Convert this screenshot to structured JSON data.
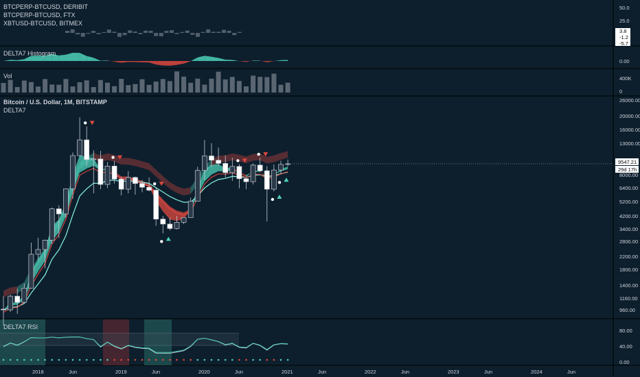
{
  "panels": {
    "spread": {
      "legend": [
        "BTCPERP-BTCUSD, DERIBIT",
        "BTCPERP-BTCUSD, FTX",
        "XBTUSD-BTCUSD, BITMEX"
      ],
      "ticks": [
        "50.0",
        "25.0",
        "3.8",
        "-1.2",
        "-5.7"
      ]
    },
    "hist": {
      "title": "DELTA7 Histogram",
      "ticks": [
        "0.00"
      ]
    },
    "vol": {
      "title": "Vol",
      "ticks": [
        "400K",
        "0"
      ]
    },
    "main": {
      "title": "Bitcoin / U.S. Dollar, 1M, BITSTAMP",
      "subtitle": "DELTA7",
      "ticks": [
        "26000.00",
        "20000.00",
        "16000.00",
        "13000.00",
        "9547.21",
        "29d 17h",
        "8000.00",
        "6400.00",
        "5200.00",
        "4200.00",
        "3400.00",
        "2800.00",
        "2200.00",
        "1800.00",
        "1400.00",
        "1160.00",
        "960.00"
      ],
      "last_price": "9547.21",
      "countdown": "29d 17h"
    },
    "rsi": {
      "title": "DELTA7 RSI",
      "ticks": [
        "80.00",
        "40.00",
        "0.00"
      ]
    }
  },
  "x_axis": [
    "2018",
    "Jun",
    "2019",
    "Jun",
    "2020",
    "Jun",
    "2021",
    "Jun",
    "2022",
    "Jun",
    "2023",
    "Jun",
    "2024",
    "Jun"
  ],
  "colors": {
    "background": "#0d1f2d",
    "teal": "#4dd0b8",
    "red": "#e0483f",
    "candle_up": "#2a3a4a",
    "candle_down": "#ffffff"
  },
  "chart_data": {
    "type": "candlestick",
    "title": "Bitcoin / U.S. Dollar, 1M, BITSTAMP",
    "y_scale": "log",
    "ylim": [
      960,
      26000
    ],
    "x": [
      "2017-01",
      "2017-02",
      "2017-03",
      "2017-04",
      "2017-05",
      "2017-06",
      "2017-07",
      "2017-08",
      "2017-09",
      "2017-10",
      "2017-11",
      "2017-12",
      "2018-01",
      "2018-02",
      "2018-03",
      "2018-04",
      "2018-05",
      "2018-06",
      "2018-07",
      "2018-08",
      "2018-09",
      "2018-10",
      "2018-11",
      "2018-12",
      "2019-01",
      "2019-02",
      "2019-03",
      "2019-04",
      "2019-05",
      "2019-06",
      "2019-07",
      "2019-08",
      "2019-09",
      "2019-10",
      "2019-11",
      "2019-12",
      "2020-01",
      "2020-02",
      "2020-03",
      "2020-04",
      "2020-05",
      "2020-06"
    ],
    "ohlc": [
      [
        970,
        1190,
        750,
        960
      ],
      [
        960,
        1220,
        930,
        1190
      ],
      [
        1190,
        1340,
        900,
        1080
      ],
      [
        1080,
        1450,
        1070,
        1350
      ],
      [
        1350,
        2760,
        1340,
        2300
      ],
      [
        2300,
        2980,
        2100,
        2480
      ],
      [
        2480,
        2900,
        1840,
        2870
      ],
      [
        2870,
        4800,
        2700,
        4700
      ],
      [
        4700,
        4970,
        2970,
        4340
      ],
      [
        4340,
        6450,
        4110,
        6440
      ],
      [
        6440,
        11400,
        5500,
        10850
      ],
      [
        10850,
        19800,
        10700,
        13900
      ],
      [
        13900,
        17200,
        9200,
        10200
      ],
      [
        10200,
        11800,
        6000,
        10300
      ],
      [
        10300,
        11700,
        6400,
        6900
      ],
      [
        6900,
        9800,
        6500,
        9200
      ],
      [
        9200,
        10000,
        7000,
        7500
      ],
      [
        7500,
        7800,
        5800,
        6400
      ],
      [
        6400,
        8500,
        6000,
        7700
      ],
      [
        7700,
        7800,
        5880,
        7000
      ],
      [
        7000,
        7400,
        6100,
        6600
      ],
      [
        6600,
        7700,
        6200,
        6300
      ],
      [
        6300,
        6600,
        3600,
        4000
      ],
      [
        4000,
        4200,
        3200,
        3700
      ],
      [
        3700,
        4100,
        3350,
        3450
      ],
      [
        3450,
        4200,
        3400,
        3800
      ],
      [
        3800,
        4100,
        3700,
        4100
      ],
      [
        4100,
        5600,
        4100,
        5300
      ],
      [
        5300,
        9100,
        5300,
        8600
      ],
      [
        8600,
        13900,
        7400,
        10800
      ],
      [
        10800,
        13200,
        9100,
        10100
      ],
      [
        10100,
        12300,
        9300,
        9600
      ],
      [
        9600,
        10900,
        7700,
        8300
      ],
      [
        8300,
        10500,
        7300,
        9150
      ],
      [
        9150,
        9500,
        6500,
        7550
      ],
      [
        7550,
        7700,
        6400,
        7200
      ],
      [
        7200,
        9600,
        6900,
        9350
      ],
      [
        9350,
        10500,
        8400,
        8550
      ],
      [
        8550,
        9200,
        3850,
        6400
      ],
      [
        6400,
        9450,
        6200,
        8650
      ],
      [
        8650,
        10000,
        8100,
        9450
      ],
      [
        9450,
        10200,
        9200,
        9547.21
      ]
    ],
    "signals_sell": [
      "2018-01",
      "2018-05",
      "2018-11",
      "2019-11",
      "2020-02"
    ],
    "signals_buy": [
      "2018-12",
      "2020-04",
      "2020-05"
    ],
    "ylabel": "",
    "xlabel": ""
  }
}
